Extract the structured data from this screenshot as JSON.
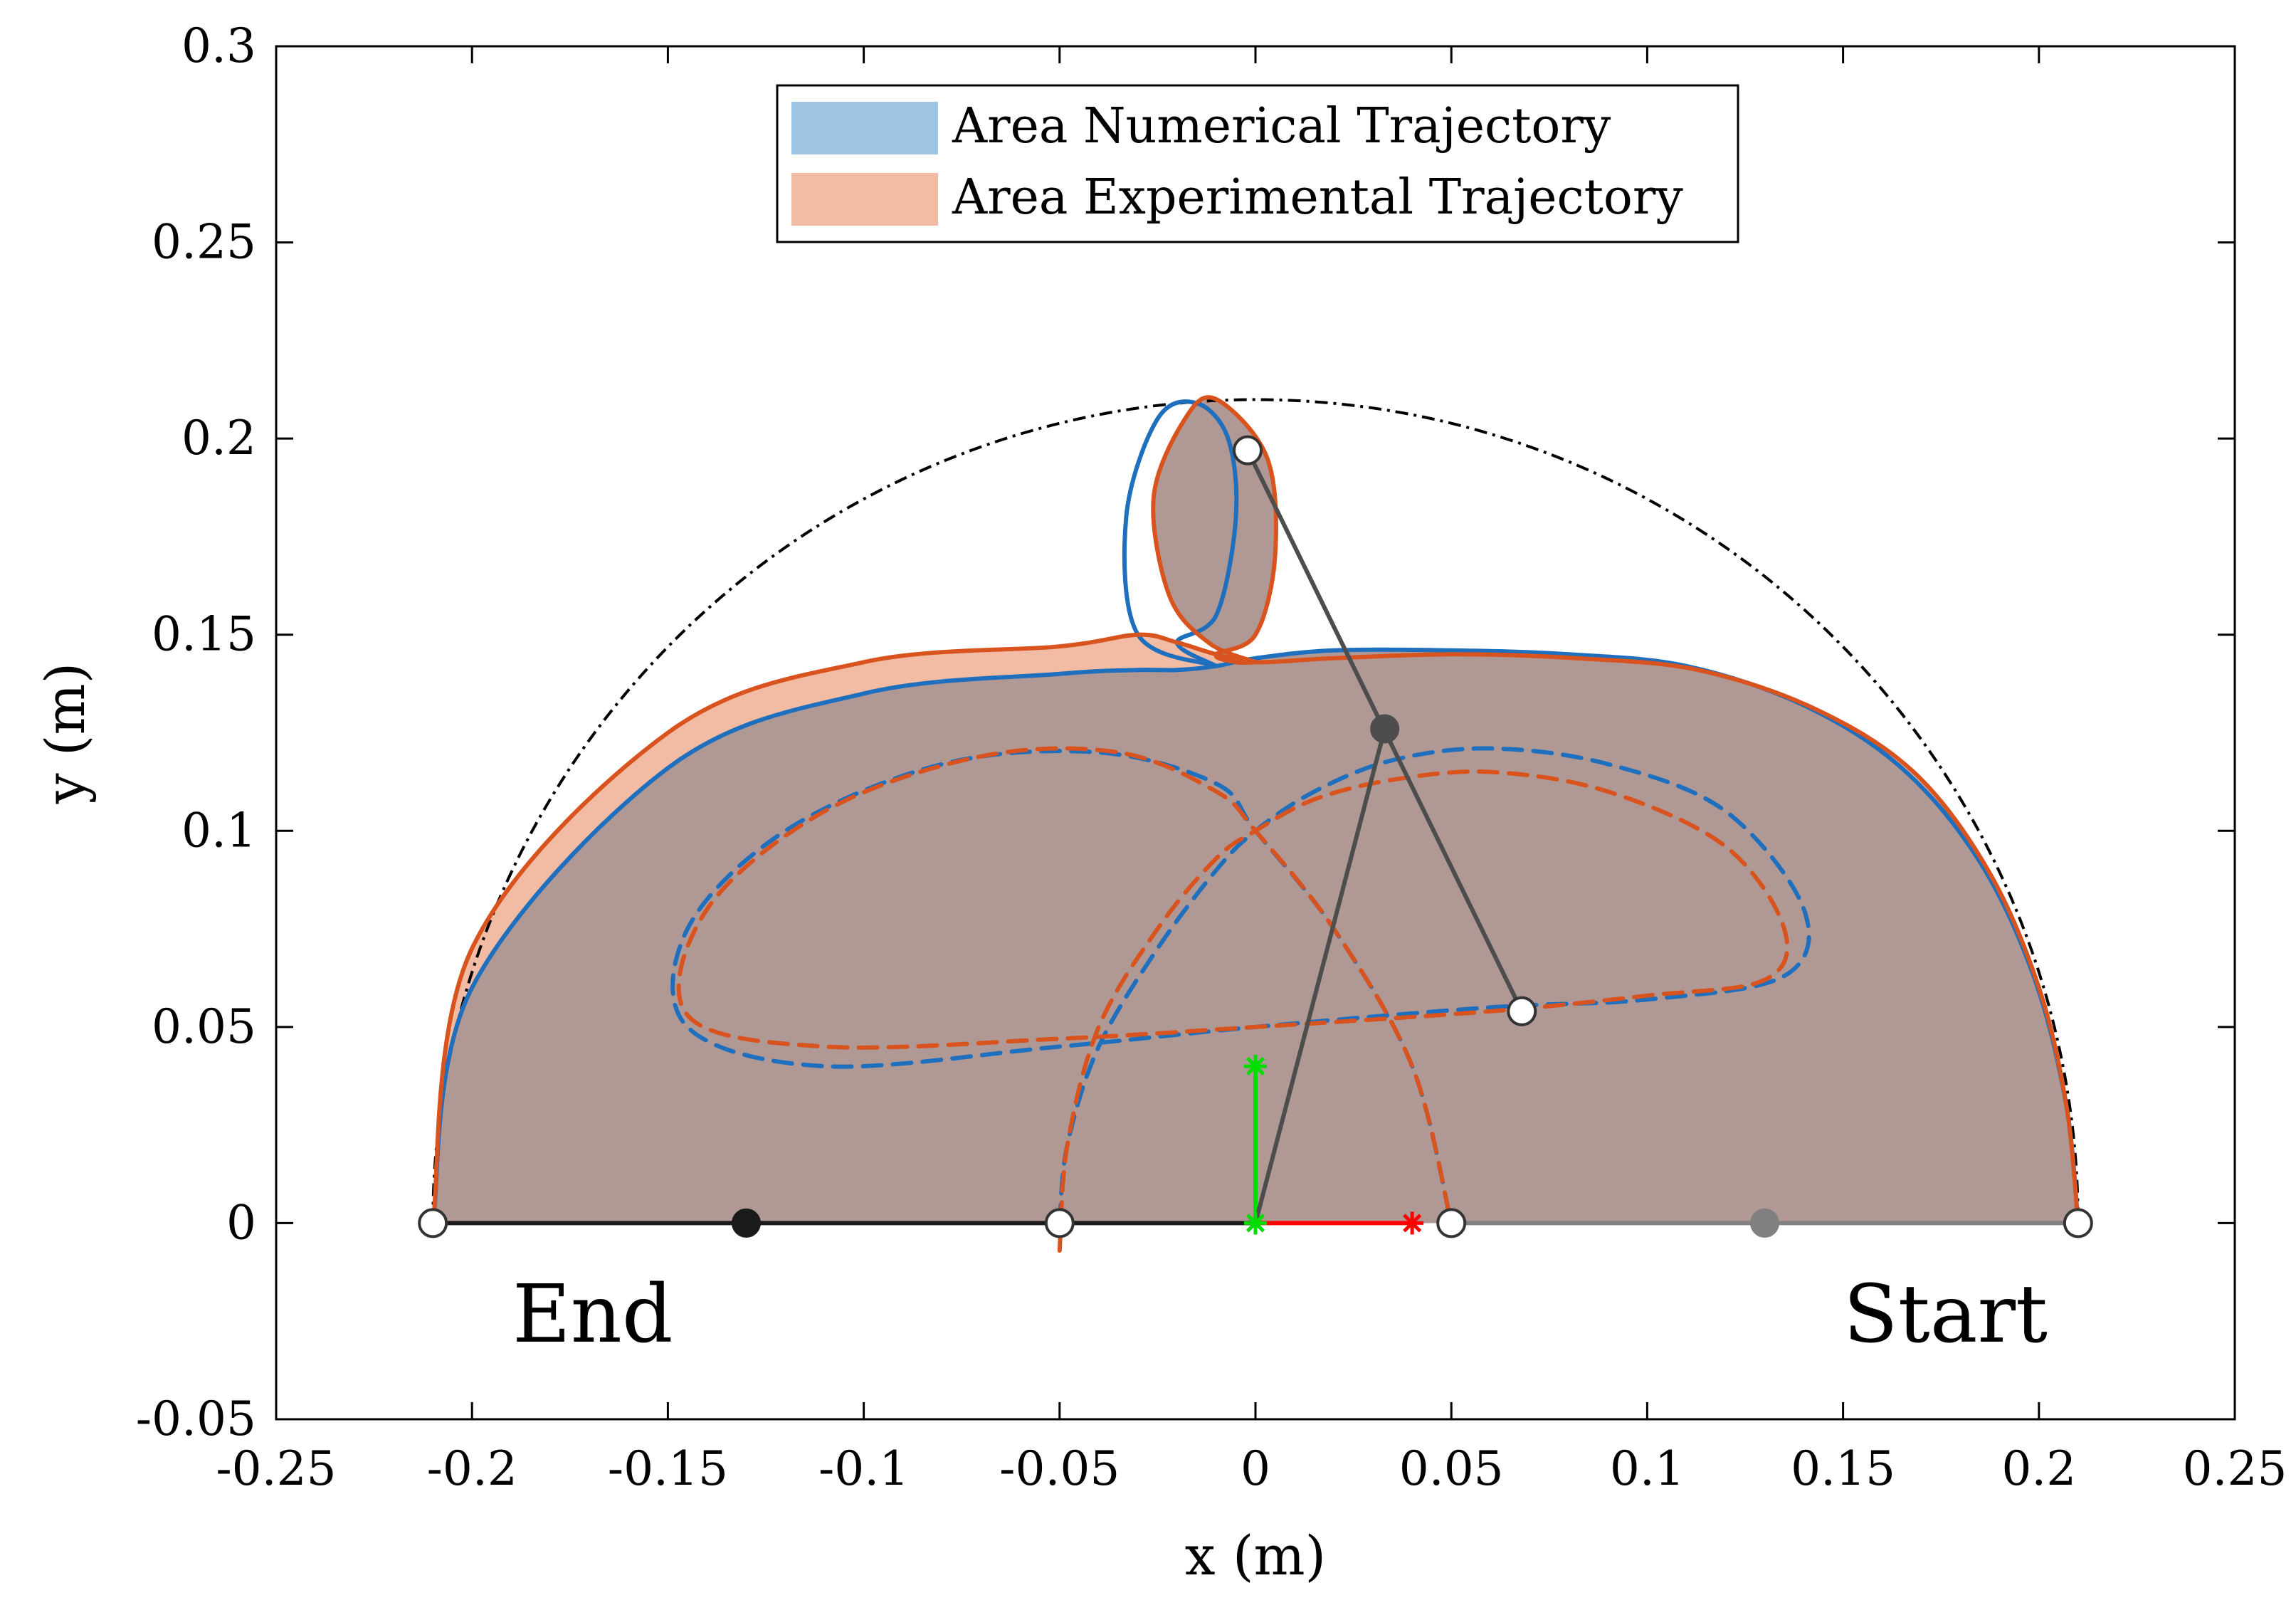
{
  "chart_data": {
    "type": "line",
    "title": "",
    "xlabel": "x (m)",
    "ylabel": "y (m)",
    "xlim": [
      -0.25,
      0.25
    ],
    "ylim": [
      -0.05,
      0.3
    ],
    "xticks": [
      -0.25,
      -0.2,
      -0.15,
      -0.1,
      -0.05,
      0,
      0.05,
      0.1,
      0.15,
      0.2,
      0.25
    ],
    "xtick_labels": [
      "-0.25",
      "-0.2",
      "-0.15",
      "-0.1",
      "-0.05",
      "0",
      "0.05",
      "0.1",
      "0.15",
      "0.2",
      "0.25"
    ],
    "yticks": [
      -0.05,
      0,
      0.05,
      0.1,
      0.15,
      0.2,
      0.25,
      0.3
    ],
    "ytick_labels": [
      "-0.05",
      "0",
      "0.05",
      "0.1",
      "0.15",
      "0.2",
      "0.25",
      "0.3"
    ],
    "grid": false,
    "legend": {
      "location": "top-center",
      "entries": [
        {
          "label": "Area Numerical Trajectory",
          "color": "#9ec6e4"
        },
        {
          "label": "Area Experimental Trajectory",
          "color": "#f2bba3"
        }
      ]
    },
    "annotations": [
      {
        "text": "End",
        "x": -0.19,
        "y": -0.024
      },
      {
        "text": "Start",
        "x": 0.175,
        "y": -0.024
      }
    ],
    "colors": {
      "numerical": "#1f6fbf",
      "experimental": "#d9531e",
      "overlap_fill": "#b09894",
      "numerical_fill": "#9ec6e4",
      "experimental_fill": "#f2bba3",
      "workspace_boundary": "#000000",
      "linkage": "#4d4d4d",
      "base_left": "#1a1a1a",
      "base_right": "#808080",
      "frame_x": "#ff0000",
      "frame_y": "#00dd00"
    },
    "series": [
      {
        "name": "Workspace boundary",
        "style": "dash-dot",
        "shape": "semicircle",
        "center": [
          0,
          0
        ],
        "radius": 0.21
      },
      {
        "name": "Numerical end-effector trajectory",
        "style": "solid",
        "x": [
          0.21,
          0.207,
          0.199,
          0.185,
          0.165,
          0.14,
          0.11,
          0.08,
          0.05,
          0.02,
          0.0,
          -0.01,
          -0.02,
          -0.03,
          -0.05,
          -0.1,
          -0.15,
          -0.2,
          -0.21
        ],
        "y": [
          0.0,
          0.03,
          0.062,
          0.092,
          0.116,
          0.132,
          0.142,
          0.145,
          0.146,
          0.146,
          0.144,
          0.142,
          0.141,
          0.141,
          0.14,
          0.135,
          0.116,
          0.06,
          0.0
        ]
      },
      {
        "name": "Numerical loop",
        "style": "solid",
        "x": [
          -0.01,
          -0.03,
          -0.033,
          -0.025,
          -0.015,
          -0.007,
          -0.005,
          -0.01,
          -0.02,
          -0.01
        ],
        "y": [
          0.142,
          0.15,
          0.18,
          0.205,
          0.209,
          0.2,
          0.18,
          0.155,
          0.148,
          0.142
        ]
      },
      {
        "name": "Experimental end-effector trajectory",
        "style": "solid",
        "x": [
          0.21,
          0.207,
          0.2,
          0.187,
          0.168,
          0.143,
          0.113,
          0.082,
          0.05,
          0.02,
          0.0,
          -0.01,
          -0.02,
          -0.03,
          -0.05,
          -0.1,
          -0.15,
          -0.2,
          -0.21
        ],
        "y": [
          0.0,
          0.03,
          0.06,
          0.09,
          0.115,
          0.131,
          0.141,
          0.144,
          0.145,
          0.144,
          0.143,
          0.145,
          0.148,
          0.15,
          0.147,
          0.143,
          0.125,
          0.07,
          0.0
        ]
      },
      {
        "name": "Experimental loop",
        "style": "solid",
        "x": [
          0.0,
          -0.012,
          -0.022,
          -0.026,
          -0.018,
          -0.01,
          0.003,
          0.005,
          0.0,
          -0.01,
          -0.005,
          0.0
        ],
        "y": [
          0.143,
          0.148,
          0.16,
          0.185,
          0.205,
          0.21,
          0.195,
          0.17,
          0.15,
          0.145,
          0.143,
          0.143
        ]
      },
      {
        "name": "Numerical elbow path",
        "style": "dashed",
        "x": [
          -0.05,
          -0.048,
          -0.04,
          -0.025,
          -0.01,
          0.0,
          0.015,
          0.035,
          0.06,
          0.09,
          0.12,
          0.14,
          0.135,
          0.1,
          0.06,
          0.0,
          -0.05,
          -0.11,
          -0.145,
          -0.145,
          -0.12,
          -0.08,
          -0.04,
          -0.01,
          0.0,
          0.02,
          0.04,
          0.05
        ],
        "y": [
          0.0,
          0.02,
          0.045,
          0.07,
          0.09,
          0.1,
          0.11,
          0.118,
          0.121,
          0.117,
          0.105,
          0.08,
          0.063,
          0.057,
          0.055,
          0.05,
          0.045,
          0.04,
          0.05,
          0.075,
          0.1,
          0.117,
          0.12,
          0.112,
          0.1,
          0.075,
          0.04,
          0.0
        ]
      },
      {
        "name": "Experimental elbow path",
        "style": "dashed",
        "x": [
          -0.05,
          -0.048,
          -0.04,
          -0.025,
          -0.01,
          0.0,
          0.015,
          0.035,
          0.06,
          0.09,
          0.12,
          0.135,
          0.13,
          0.1,
          0.06,
          0.0,
          -0.05,
          -0.11,
          -0.145,
          -0.14,
          -0.11,
          -0.07,
          -0.035,
          -0.01,
          0.0,
          0.02,
          0.04,
          0.05
        ],
        "y": [
          -0.007,
          0.02,
          0.05,
          0.075,
          0.093,
          0.1,
          0.108,
          0.113,
          0.115,
          0.11,
          0.096,
          0.075,
          0.062,
          0.058,
          0.054,
          0.05,
          0.047,
          0.045,
          0.053,
          0.08,
          0.105,
          0.119,
          0.12,
          0.11,
          0.1,
          0.075,
          0.04,
          0.0
        ]
      }
    ],
    "linkage": {
      "links": [
        {
          "from": [
            0,
            0
          ],
          "to": [
            0.033,
            0.126
          ]
        },
        {
          "from": [
            -0.002,
            0.197
          ],
          "to": [
            0.068,
            0.054
          ]
        }
      ],
      "joints_open": [
        [
          -0.21,
          0
        ],
        [
          -0.05,
          0
        ],
        [
          0.05,
          0
        ],
        [
          0.21,
          0
        ],
        [
          -0.002,
          0.197
        ],
        [
          0.068,
          0.054
        ]
      ],
      "joints_filled": [
        {
          "x": -0.13,
          "y": 0,
          "color": "#1a1a1a"
        },
        {
          "x": 0.13,
          "y": 0,
          "color": "#808080"
        },
        {
          "x": 0.033,
          "y": 0.126,
          "color": "#4d4d4d"
        }
      ],
      "base_links": [
        {
          "from": [
            -0.21,
            0
          ],
          "to": [
            0,
            0
          ],
          "color": "#1a1a1a"
        },
        {
          "from": [
            0.05,
            0
          ],
          "to": [
            0.21,
            0
          ],
          "color": "#808080"
        }
      ],
      "frame": {
        "origin": [
          0,
          0
        ],
        "x_axis_to": [
          0.04,
          0
        ],
        "y_axis_to": [
          0,
          0.04
        ]
      }
    }
  }
}
